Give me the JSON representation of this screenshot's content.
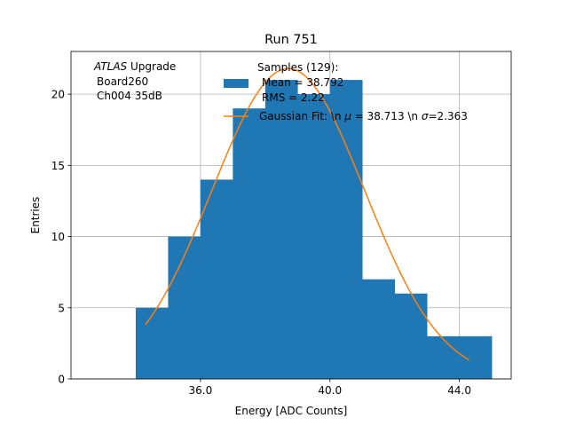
{
  "chart_data": {
    "type": "bar",
    "title": "Run 751",
    "xlabel": "Energy [ADC Counts]",
    "ylabel": "Entries",
    "xlim": [
      32.0,
      45.6
    ],
    "ylim": [
      0,
      23.0
    ],
    "xticks": [
      36.0,
      40.0,
      44.0
    ],
    "xtick_labels": [
      "36.0",
      "40.0",
      "44.0"
    ],
    "yticks": [
      0,
      5,
      10,
      15,
      20
    ],
    "ytick_labels": [
      "0",
      "5",
      "10",
      "15",
      "20"
    ],
    "grid": true,
    "bar_color": "#1f77b4",
    "fit_color": "#ff7f0e",
    "histogram": {
      "name": "Samples (129):\n Mean = 38.792\n RMS = 2.22",
      "bin_edges": [
        34,
        35,
        36,
        37,
        38,
        39,
        40,
        41,
        42,
        43,
        44,
        45
      ],
      "counts": [
        5,
        10,
        14,
        19,
        21,
        20,
        21,
        7,
        6,
        3,
        3
      ]
    },
    "fit": {
      "name": "Gaussian Fit: \\n μ = 38.713 \\n σ=2.363",
      "mu": 38.713,
      "sigma": 2.363,
      "amplitude": 21.8,
      "x_range": [
        34.3,
        44.3
      ]
    },
    "legend": {
      "placement": "top-center",
      "entries": [
        {
          "id": "legend-hist",
          "title_line": "Samples (129):",
          "line2": "Mean = 38.792",
          "line3": "RMS = 2.22"
        },
        {
          "id": "legend-fit",
          "prefix": "Gaussian Fit: \\n ",
          "mu_sym": "μ",
          "mid": " = 38.713 \\n ",
          "sigma_sym": "σ",
          "suffix": "=2.363"
        }
      ]
    },
    "annotation": {
      "atlas": "ATLAS",
      "atlas_suffix": " Upgrade",
      "line2": "Board260",
      "line3": "Ch004 35dB"
    }
  }
}
